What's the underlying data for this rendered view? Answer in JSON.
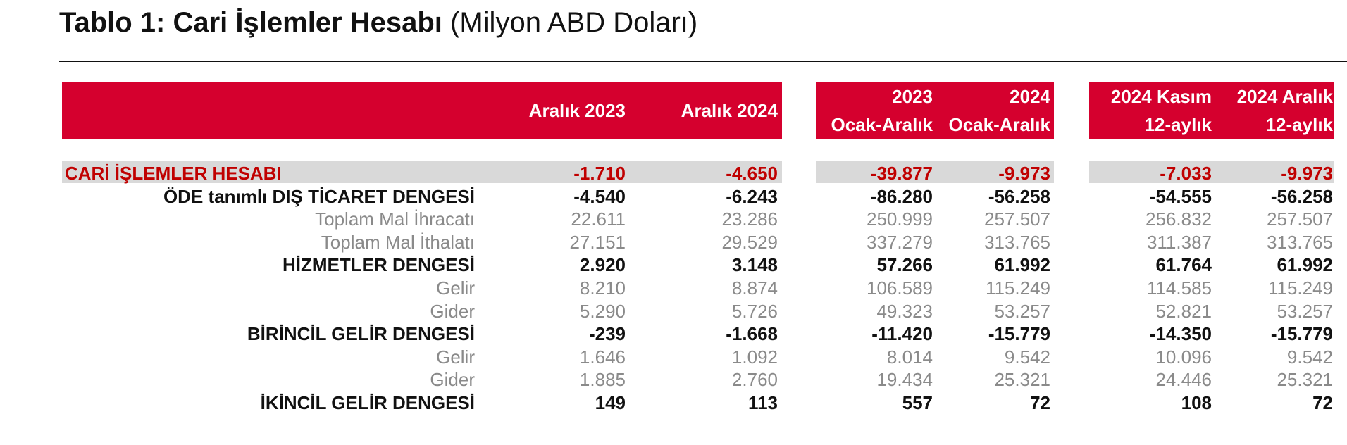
{
  "title": {
    "bold": "Tablo 1: Cari İşlemler Hesabı",
    "light": "(Milyon ABD Doları)"
  },
  "header": {
    "c0": {
      "line1": "",
      "line2": "Aralık 2023"
    },
    "c1": {
      "line1": "",
      "line2": "Aralık 2024"
    },
    "c2": {
      "line1": "2023",
      "line2": "Ocak-Aralık"
    },
    "c3": {
      "line1": "2024",
      "line2": "Ocak-Aralık"
    },
    "c4": {
      "line1": "2024 Kasım",
      "line2": "12-aylık"
    },
    "c5": {
      "line1": "2024 Aralık",
      "line2": "12-aylık"
    }
  },
  "rows": [
    {
      "label": "CARİ İŞLEMLER HESABI",
      "style": "main",
      "values": [
        "-1.710",
        "-4.650",
        "-39.877",
        "-9.973",
        "-7.033",
        "-9.973"
      ]
    },
    {
      "label": "ÖDE tanımlı DIŞ TİCARET DENGESİ",
      "style": "bold",
      "values": [
        "-4.540",
        "-6.243",
        "-86.280",
        "-56.258",
        "-54.555",
        "-56.258"
      ]
    },
    {
      "label": "Toplam Mal İhracatı",
      "style": "light",
      "values": [
        "22.611",
        "23.286",
        "250.999",
        "257.507",
        "256.832",
        "257.507"
      ]
    },
    {
      "label": "Toplam Mal İthalatı",
      "style": "light",
      "values": [
        "27.151",
        "29.529",
        "337.279",
        "313.765",
        "311.387",
        "313.765"
      ]
    },
    {
      "label": "HİZMETLER DENGESİ",
      "style": "bold",
      "values": [
        "2.920",
        "3.148",
        "57.266",
        "61.992",
        "61.764",
        "61.992"
      ]
    },
    {
      "label": "Gelir",
      "style": "light",
      "values": [
        "8.210",
        "8.874",
        "106.589",
        "115.249",
        "114.585",
        "115.249"
      ]
    },
    {
      "label": "Gider",
      "style": "light",
      "values": [
        "5.290",
        "5.726",
        "49.323",
        "53.257",
        "52.821",
        "53.257"
      ]
    },
    {
      "label": "BİRİNCİL GELİR DENGESİ",
      "style": "bold",
      "values": [
        "-239",
        "-1.668",
        "-11.420",
        "-15.779",
        "-14.350",
        "-15.779"
      ]
    },
    {
      "label": "Gelir",
      "style": "light",
      "values": [
        "1.646",
        "1.092",
        "8.014",
        "9.542",
        "10.096",
        "9.542"
      ]
    },
    {
      "label": "Gider",
      "style": "light",
      "values": [
        "1.885",
        "2.760",
        "19.434",
        "25.321",
        "24.446",
        "25.321"
      ]
    },
    {
      "label": "İKİNCİL GELİR DENGESİ",
      "style": "bold",
      "values": [
        "149",
        "113",
        "557",
        "72",
        "108",
        "72"
      ]
    }
  ]
}
